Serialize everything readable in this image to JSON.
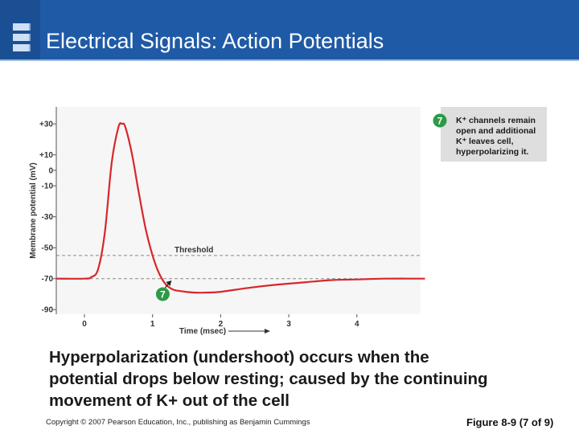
{
  "slide": {
    "title": "Electrical Signals: Action Potentials",
    "caption": "Hyperpolarization (undershoot) occurs when the potential drops below resting; caused by the continuing movement of K+ out of the cell",
    "copyright": "Copyright © 2007 Pearson Education, Inc., publishing as Benjamin Cummings",
    "figure_ref": "Figure 8-9 (7 of 9)"
  },
  "callout": {
    "step": "7",
    "lines": [
      "K⁺ channels remain",
      "open and additional",
      "K⁺ leaves cell,",
      "hyperpolarizing it."
    ]
  },
  "colors": {
    "header": "#1f5aa6",
    "trace": "#d9262b",
    "marker": "#2e9a48",
    "plot_bg": "#f6f6f6"
  },
  "chart_data": {
    "type": "line",
    "xlabel": "Time (msec)",
    "ylabel": "Membrane potential (mV)",
    "xlim": [
      -0.42,
      5.0
    ],
    "ylim": [
      -93,
      41
    ],
    "x_ticks": [
      0,
      1,
      2,
      3,
      4
    ],
    "y_ticks": [
      30,
      10,
      0,
      -10,
      -30,
      -50,
      -70,
      -90
    ],
    "y_tick_labels": [
      "+30",
      "+10",
      "0",
      "-10",
      "-30",
      "-50",
      "-70",
      "-90"
    ],
    "threshold": {
      "label": "Threshold",
      "value": -55
    },
    "resting": {
      "value": -70
    },
    "marker": {
      "label": "7",
      "x": 1.15,
      "y": -80
    },
    "series": [
      {
        "x": [
          -0.42,
          0.0,
          0.1,
          0.2,
          0.3,
          0.4,
          0.5,
          0.55,
          0.6,
          0.7,
          0.8,
          0.9,
          1.0,
          1.1,
          1.2,
          1.3,
          1.4,
          1.6,
          1.8,
          2.0,
          2.4,
          2.8,
          3.2,
          3.6,
          4.0,
          4.4,
          5.0
        ],
        "y": [
          -70,
          -70,
          -69,
          -64,
          -40,
          5,
          28,
          30,
          28,
          10,
          -15,
          -38,
          -55,
          -67,
          -74,
          -77,
          -78,
          -79,
          -79,
          -78.5,
          -76,
          -74,
          -72.5,
          -71,
          -70.5,
          -70,
          -70
        ]
      }
    ],
    "grid": false,
    "legend": "none"
  }
}
